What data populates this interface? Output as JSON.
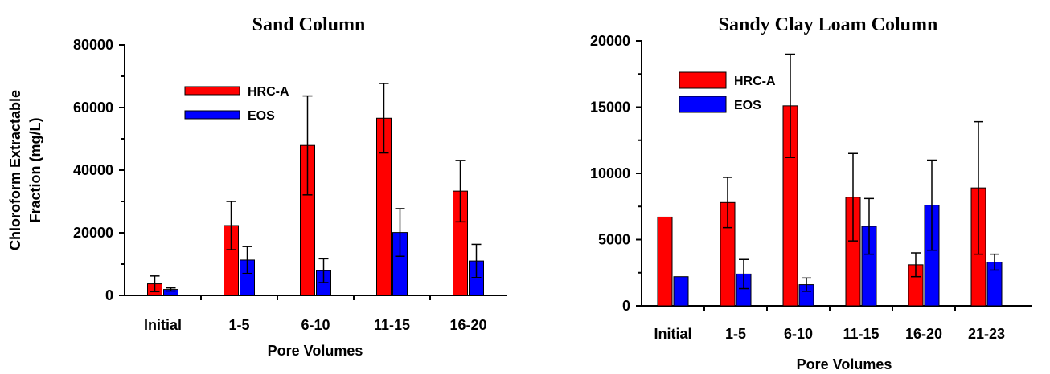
{
  "chart_data": [
    {
      "type": "bar",
      "title": "Sand Column",
      "xlabel": "Pore Volumes",
      "ylabel": "Chloroform Extractable Fraction (mg/L)",
      "ylabel_lines": [
        "Chloroform Extractable",
        "Fraction (mg/L)"
      ],
      "ylim": [
        0,
        80000
      ],
      "yticks": [
        0,
        20000,
        40000,
        60000,
        80000
      ],
      "categories": [
        "Initial",
        "1-5",
        "6-10",
        "11-15",
        "16-20"
      ],
      "series": [
        {
          "name": "HRC-A",
          "color": "#ff0000",
          "values": [
            3700,
            22300,
            47900,
            56600,
            33300
          ],
          "errors": [
            2500,
            7700,
            15800,
            11100,
            9800
          ]
        },
        {
          "name": "EOS",
          "color": "#0000ff",
          "values": [
            1900,
            11300,
            7900,
            20100,
            11000
          ],
          "errors": [
            500,
            4300,
            3800,
            7600,
            5300
          ]
        }
      ],
      "legend": "upper-left"
    },
    {
      "type": "bar",
      "title": "Sandy Clay Loam Column",
      "xlabel": "Pore Volumes",
      "ylabel": "",
      "ylim": [
        0,
        20000
      ],
      "yticks": [
        0,
        5000,
        10000,
        15000,
        20000
      ],
      "categories": [
        "Initial",
        "1-5",
        "6-10",
        "11-15",
        "16-20",
        "21-23"
      ],
      "series": [
        {
          "name": "HRC-A",
          "color": "#ff0000",
          "values": [
            6700,
            7800,
            15100,
            8200,
            3100,
            8900
          ],
          "errors": [
            0,
            1900,
            3900,
            3300,
            900,
            5000
          ]
        },
        {
          "name": "EOS",
          "color": "#0000ff",
          "values": [
            2200,
            2400,
            1600,
            6000,
            7600,
            3300
          ],
          "errors": [
            0,
            1100,
            500,
            2100,
            3400,
            600
          ]
        }
      ],
      "legend": "upper-left"
    }
  ]
}
